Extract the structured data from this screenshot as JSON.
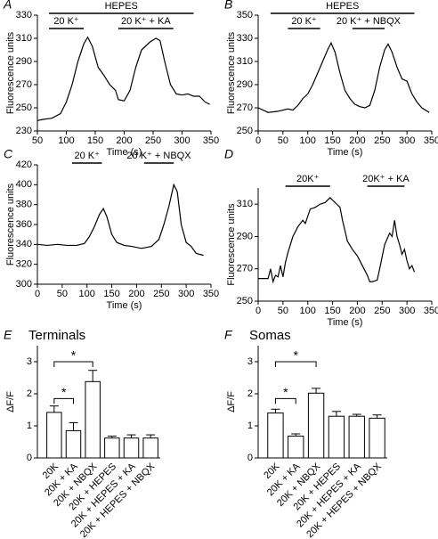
{
  "chart_data": [
    {
      "type": "line",
      "label": "A",
      "ylabel": "Fluorescence units",
      "xlabel": "Time (s)",
      "xlim": [
        50,
        350
      ],
      "xticks": [
        50,
        100,
        150,
        200,
        250,
        300,
        350
      ],
      "ylim": [
        230,
        330
      ],
      "yticks": [
        230,
        250,
        270,
        290,
        310,
        330
      ],
      "x": [
        50,
        60,
        75,
        90,
        100,
        110,
        120,
        130,
        137,
        145,
        155,
        165,
        175,
        185,
        190,
        200,
        210,
        220,
        230,
        245,
        255,
        262,
        270,
        280,
        290,
        300,
        310,
        320,
        330,
        340,
        348
      ],
      "values": [
        239,
        240,
        241,
        245,
        255,
        270,
        290,
        305,
        311,
        303,
        285,
        278,
        270,
        265,
        257,
        256,
        265,
        285,
        300,
        307,
        310,
        308,
        290,
        270,
        262,
        261,
        262,
        260,
        260,
        255,
        253
      ],
      "spans": [
        {
          "label": "HEPES",
          "x": [
            70,
            320
          ]
        },
        {
          "label": "20 K⁺",
          "x": [
            70,
            130
          ]
        },
        {
          "label": "20 K⁺ + KA",
          "x": [
            190,
            285
          ]
        }
      ]
    },
    {
      "type": "line",
      "label": "B",
      "ylabel": "Fluorescence units",
      "xlabel": "Time (s)",
      "xlim": [
        0,
        350
      ],
      "xticks": [
        0,
        50,
        100,
        150,
        200,
        250,
        300,
        350
      ],
      "ylim": [
        250,
        350
      ],
      "yticks": [
        250,
        270,
        290,
        310,
        330,
        350
      ],
      "x": [
        0,
        10,
        20,
        40,
        60,
        70,
        80,
        90,
        100,
        110,
        120,
        130,
        140,
        147,
        155,
        165,
        175,
        185,
        195,
        205,
        215,
        225,
        235,
        245,
        255,
        262,
        270,
        280,
        290,
        300,
        310,
        320,
        330,
        345
      ],
      "values": [
        270,
        268,
        266,
        267,
        269,
        268,
        272,
        278,
        282,
        290,
        300,
        310,
        320,
        326,
        318,
        300,
        285,
        278,
        273,
        271,
        270,
        272,
        285,
        305,
        320,
        325,
        318,
        305,
        295,
        293,
        282,
        275,
        270,
        266
      ],
      "spans": [
        {
          "label": "HEPES",
          "x": [
            25,
            315
          ]
        },
        {
          "label": "20 K⁺",
          "x": [
            60,
            125
          ]
        },
        {
          "label": "20 K⁺ + NBQX",
          "x": [
            190,
            255
          ]
        }
      ]
    },
    {
      "type": "line",
      "label": "C",
      "ylabel": "Fluorescence units",
      "xlabel": "Time (s)",
      "xlim": [
        0,
        350
      ],
      "xticks": [
        0,
        50,
        100,
        150,
        200,
        250,
        300,
        350
      ],
      "ylim": [
        300,
        420
      ],
      "yticks": [
        300,
        320,
        340,
        360,
        380,
        400,
        420
      ],
      "x": [
        0,
        20,
        40,
        60,
        80,
        95,
        105,
        115,
        125,
        133,
        140,
        150,
        160,
        175,
        190,
        210,
        230,
        245,
        255,
        265,
        275,
        282,
        290,
        300,
        310,
        320,
        335
      ],
      "values": [
        340,
        339,
        340,
        339,
        339,
        341,
        348,
        358,
        370,
        376,
        368,
        350,
        342,
        339,
        338,
        336,
        338,
        345,
        360,
        378,
        400,
        393,
        360,
        342,
        338,
        331,
        329
      ],
      "spans": [
        {
          "label": "20 K⁺",
          "x": [
            70,
            130
          ]
        },
        {
          "label": "20 K⁺ + NBQX",
          "x": [
            215,
            275
          ]
        }
      ]
    },
    {
      "type": "line",
      "label": "D",
      "ylabel": "Fluorescence units",
      "xlabel": "Time (s)",
      "xlim": [
        0,
        350
      ],
      "xticks": [
        0,
        50,
        100,
        150,
        200,
        250,
        300,
        350
      ],
      "ylim": [
        250,
        320
      ],
      "yticks": [
        250,
        270,
        290,
        310
      ],
      "x": [
        0,
        10,
        20,
        25,
        30,
        35,
        40,
        45,
        50,
        55,
        60,
        70,
        80,
        90,
        95,
        105,
        115,
        125,
        135,
        145,
        155,
        165,
        170,
        180,
        190,
        200,
        210,
        220,
        225,
        230,
        240,
        245,
        255,
        265,
        270,
        275,
        280,
        285,
        290,
        295,
        300,
        305,
        310,
        315
      ],
      "values": [
        264,
        264,
        264,
        270,
        262,
        266,
        265,
        272,
        265,
        274,
        280,
        290,
        296,
        300,
        298,
        307,
        308,
        310,
        311,
        314,
        311,
        308,
        300,
        287,
        282,
        278,
        272,
        266,
        262,
        262,
        263,
        270,
        285,
        292,
        290,
        300,
        290,
        285,
        279,
        282,
        275,
        270,
        272,
        268
      ],
      "spans": [
        {
          "label": "20K⁺",
          "x": [
            55,
            145
          ]
        },
        {
          "label": "20K⁺ + KA",
          "x": [
            220,
            295
          ]
        }
      ]
    },
    {
      "type": "bar",
      "label": "E",
      "title": "Terminals",
      "ylabel": "ΔF/F",
      "ylim": [
        0,
        3.5
      ],
      "yticks": [
        0,
        1,
        2,
        3
      ],
      "categories": [
        "20K",
        "20K + KA",
        "20K + NBQX",
        "20K + HEPES",
        "20K + HEPES + KA",
        "20K + HEPES + NBQX"
      ],
      "values": [
        1.42,
        0.85,
        2.38,
        0.62,
        0.62,
        0.62
      ],
      "errors": [
        0.2,
        0.25,
        0.35,
        0.06,
        0.1,
        0.1
      ],
      "significance": [
        {
          "from": 0,
          "to": 1,
          "y": 1.85,
          "label": "*"
        },
        {
          "from": 0,
          "to": 2,
          "y": 3.0,
          "label": "*"
        }
      ]
    },
    {
      "type": "bar",
      "label": "F",
      "title": "Somas",
      "ylabel": "ΔF/F",
      "ylim": [
        0,
        3.5
      ],
      "yticks": [
        0,
        1,
        2,
        3
      ],
      "categories": [
        "20K",
        "20K + KA",
        "20K + NBQX",
        "20K + HEPES",
        "20K + HEPES + KA",
        "20K + HEPES + NBQX"
      ],
      "values": [
        1.4,
        0.68,
        2.02,
        1.3,
        1.3,
        1.24
      ],
      "errors": [
        0.12,
        0.07,
        0.15,
        0.15,
        0.06,
        0.1
      ],
      "significance": [
        {
          "from": 0,
          "to": 1,
          "y": 1.85,
          "label": "*"
        },
        {
          "from": 0,
          "to": 2,
          "y": 3.0,
          "label": "*"
        }
      ]
    }
  ]
}
